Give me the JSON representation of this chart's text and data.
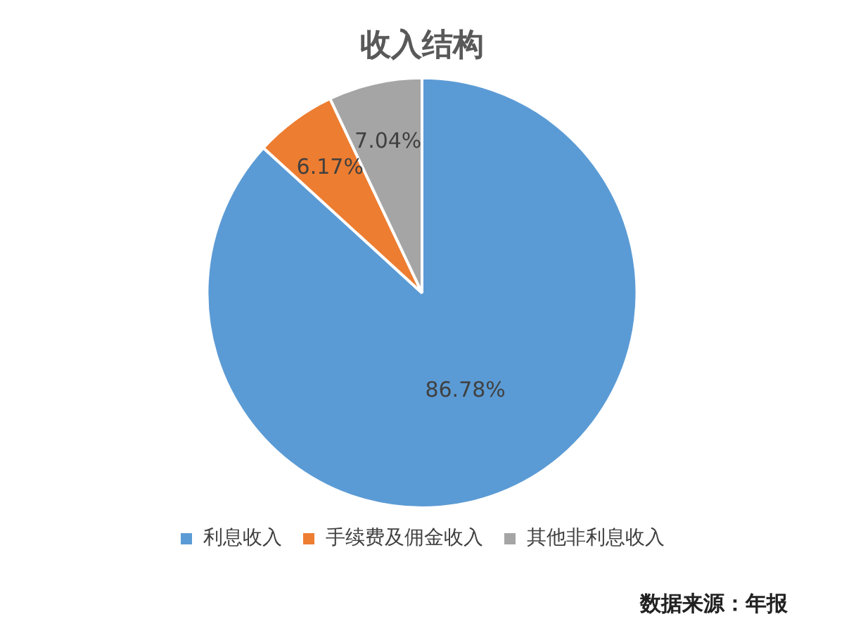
{
  "chart_data": {
    "type": "pie",
    "title": "收入结构",
    "categories": [
      "利息收入",
      "手续费及佣金收入",
      "其他非利息收入"
    ],
    "values": [
      86.78,
      6.17,
      7.04
    ],
    "colors": [
      "#5b9bd5",
      "#ed7d31",
      "#a5a5a5"
    ],
    "value_labels": [
      "86.78%",
      "6.17%",
      "7.04%"
    ],
    "legend": "bottom",
    "annotations": [
      "数据来源：年报"
    ]
  }
}
